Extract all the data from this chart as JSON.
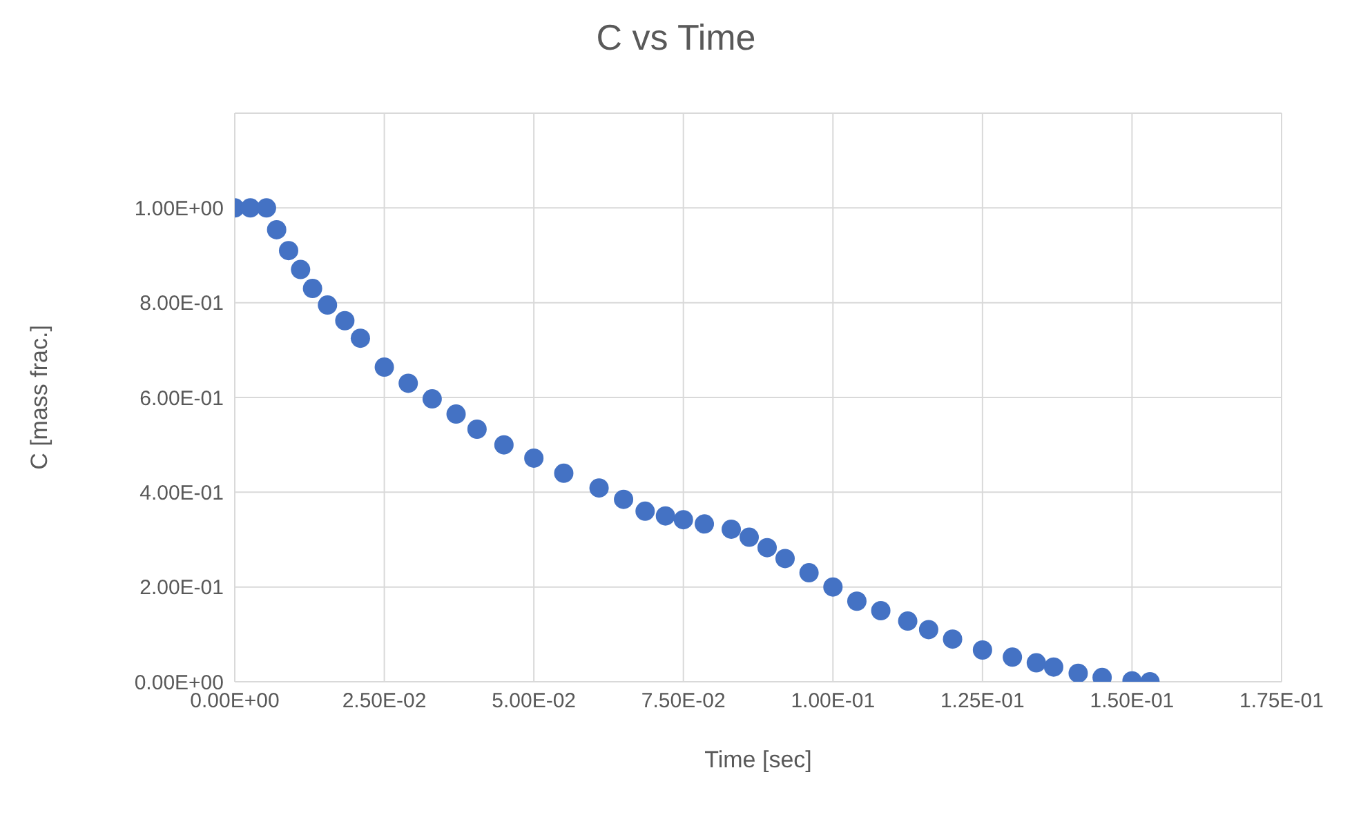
{
  "chart_data": {
    "type": "scatter",
    "title": "C vs Time",
    "xlabel": "Time [sec]",
    "ylabel": "C [mass frac.]",
    "marker": "circle",
    "grid": true,
    "xlim": [
      0,
      0.175
    ],
    "ylim": [
      0,
      1.2
    ],
    "xticks": [
      {
        "value": 0,
        "label": "0.00E+00"
      },
      {
        "value": 0.025,
        "label": "2.50E-02"
      },
      {
        "value": 0.05,
        "label": "5.00E-02"
      },
      {
        "value": 0.075,
        "label": "7.50E-02"
      },
      {
        "value": 0.1,
        "label": "1.00E-01"
      },
      {
        "value": 0.125,
        "label": "1.25E-01"
      },
      {
        "value": 0.15,
        "label": "1.50E-01"
      },
      {
        "value": 0.175,
        "label": "1.75E-01"
      }
    ],
    "yticks": [
      {
        "value": 0,
        "label": "0.00E+00"
      },
      {
        "value": 0.2,
        "label": "2.00E-01"
      },
      {
        "value": 0.4,
        "label": "4.00E-01"
      },
      {
        "value": 0.6,
        "label": "6.00E-01"
      },
      {
        "value": 0.8,
        "label": "8.00E-01"
      },
      {
        "value": 1,
        "label": "1.00E+00"
      },
      {
        "value": 1.2,
        "label": null
      }
    ],
    "series": [
      {
        "color": "#4472c4",
        "x": [
          0,
          0.0026,
          0.0053,
          0.007,
          0.009,
          0.011,
          0.013,
          0.0155,
          0.0184,
          0.021,
          0.025,
          0.029,
          0.033,
          0.037,
          0.0405,
          0.045,
          0.05,
          0.055,
          0.0609,
          0.065,
          0.0686,
          0.072,
          0.075,
          0.0785,
          0.083,
          0.086,
          0.089,
          0.092,
          0.096,
          0.1,
          0.104,
          0.108,
          0.1125,
          0.116,
          0.12,
          0.125,
          0.13,
          0.134,
          0.1369,
          0.141,
          0.145,
          0.15,
          0.153
        ],
        "values": [
          1,
          1,
          1,
          0.954,
          0.91,
          0.87,
          0.83,
          0.795,
          0.762,
          0.725,
          0.664,
          0.63,
          0.597,
          0.565,
          0.533,
          0.5,
          0.472,
          0.44,
          0.409,
          0.385,
          0.36,
          0.35,
          0.342,
          0.333,
          0.322,
          0.305,
          0.283,
          0.26,
          0.23,
          0.2,
          0.17,
          0.15,
          0.128,
          0.11,
          0.09,
          0.067,
          0.052,
          0.04,
          0.031,
          0.018,
          0.009,
          0.002,
          0
        ]
      }
    ]
  }
}
